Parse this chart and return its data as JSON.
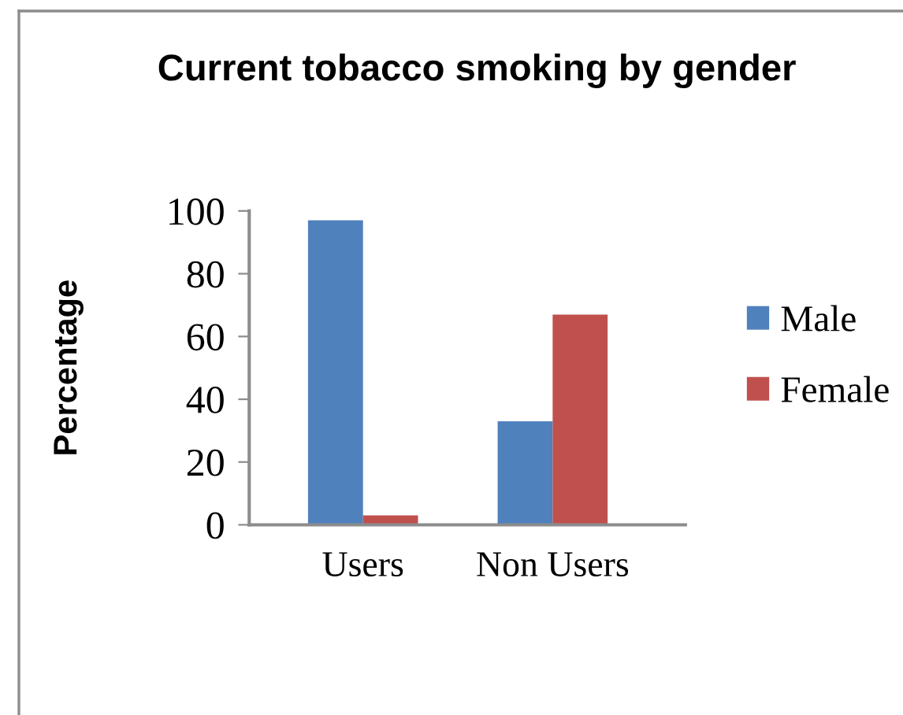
{
  "chart_data": {
    "type": "bar",
    "title": "Current tobacco smoking by gender",
    "ylabel": "Percentage",
    "categories": [
      "Users",
      "Non Users"
    ],
    "series": [
      {
        "name": "Male",
        "color": "#4f81bd",
        "values": [
          97,
          33
        ]
      },
      {
        "name": "Female",
        "color": "#c0504d",
        "values": [
          3,
          67
        ]
      }
    ],
    "ylim": [
      0,
      100
    ],
    "yticks": [
      0,
      20,
      40,
      60,
      80,
      100
    ],
    "legend": "right"
  }
}
